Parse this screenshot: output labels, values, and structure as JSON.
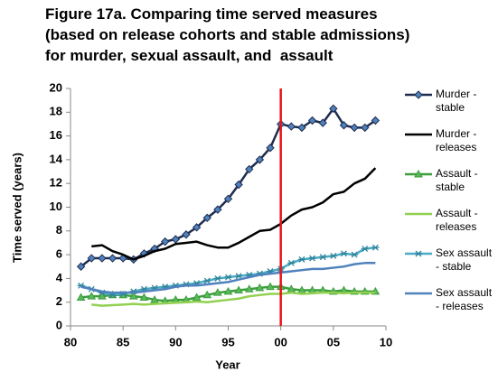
{
  "chart_data": {
    "type": "line",
    "title": "Figure 17a. Comparing time served measures\n(based on release cohorts and stable admissions)\nfor murder, sexual assault, and  assault",
    "xlabel": "Year",
    "ylabel": "Time served (years)",
    "x": [
      81,
      82,
      83,
      84,
      85,
      86,
      87,
      88,
      89,
      90,
      91,
      92,
      93,
      94,
      95,
      96,
      97,
      98,
      99,
      100,
      101,
      102,
      103,
      104,
      105,
      106,
      107,
      108,
      109
    ],
    "xlim": [
      80,
      110
    ],
    "xticks": [
      80,
      85,
      90,
      95,
      {
        "value": 100,
        "label": "00"
      },
      {
        "value": 105,
        "label": "05"
      },
      {
        "value": 110,
        "label": "10"
      }
    ],
    "ylim": [
      0,
      20
    ],
    "yticks": [
      0,
      2,
      4,
      6,
      8,
      10,
      12,
      14,
      16,
      18,
      20
    ],
    "grid": false,
    "legend": "right",
    "vline": {
      "x": 100,
      "color": "#e8141b"
    },
    "series": [
      {
        "name": "Murder - stable",
        "color": "#1f2d4f",
        "marker": "diamond",
        "marker_fill": "#4f81bd",
        "values": [
          5.0,
          5.7,
          5.7,
          5.7,
          5.7,
          5.6,
          6.1,
          6.5,
          7.1,
          7.3,
          7.7,
          8.3,
          9.1,
          9.8,
          10.7,
          11.9,
          13.2,
          14.0,
          15.0,
          17.0,
          16.8,
          16.7,
          17.3,
          17.1,
          18.3,
          16.9,
          16.7,
          16.7,
          17.3
        ]
      },
      {
        "name": "Murder - releases",
        "color": "#000000",
        "marker": "none",
        "values": [
          null,
          6.7,
          6.8,
          6.3,
          6.0,
          5.6,
          5.9,
          6.3,
          6.5,
          6.9,
          7.0,
          7.1,
          6.8,
          6.6,
          6.6,
          7.0,
          7.5,
          8.0,
          8.1,
          8.6,
          9.3,
          9.8,
          10.0,
          10.4,
          11.1,
          11.3,
          12.0,
          12.4,
          13.3
        ]
      },
      {
        "name": "Assault - stable",
        "color": "#3a9e3a",
        "marker": "triangle",
        "marker_fill": "#5cb85c",
        "values": [
          2.4,
          2.5,
          2.5,
          2.6,
          2.6,
          2.5,
          2.4,
          2.2,
          2.1,
          2.2,
          2.2,
          2.4,
          2.6,
          2.8,
          2.9,
          3.0,
          3.1,
          3.2,
          3.3,
          3.3,
          3.1,
          3.0,
          3.0,
          3.0,
          2.9,
          3.0,
          2.9,
          2.9,
          2.9
        ]
      },
      {
        "name": "Assault - releases",
        "color": "#92d050",
        "marker": "none",
        "values": [
          null,
          1.8,
          1.7,
          1.75,
          1.8,
          1.85,
          1.8,
          1.85,
          1.9,
          1.95,
          2.0,
          2.05,
          2.0,
          2.1,
          2.2,
          2.3,
          2.5,
          2.6,
          2.7,
          2.7,
          2.8,
          2.7,
          2.75,
          2.8,
          2.8,
          2.75,
          2.8,
          2.8,
          2.8
        ]
      },
      {
        "name": "Sex assault - stable",
        "color": "#4bacc6",
        "marker": "asterisk",
        "marker_fill": "#31859c",
        "values": [
          3.4,
          3.1,
          2.8,
          2.6,
          2.7,
          2.9,
          3.1,
          3.2,
          3.3,
          3.4,
          3.5,
          3.6,
          3.8,
          4.0,
          4.1,
          4.2,
          4.3,
          4.4,
          4.6,
          4.8,
          5.3,
          5.6,
          5.7,
          5.8,
          5.9,
          6.1,
          6.0,
          6.5,
          6.6
        ]
      },
      {
        "name": "Sex assault - releases",
        "color": "#4f81bd",
        "marker": "none",
        "values": [
          3.3,
          3.1,
          2.9,
          2.8,
          2.8,
          2.8,
          2.9,
          3.0,
          3.1,
          3.3,
          3.4,
          3.4,
          3.5,
          3.6,
          3.7,
          3.9,
          4.1,
          4.3,
          4.4,
          4.5,
          4.6,
          4.7,
          4.8,
          4.8,
          4.9,
          5.0,
          5.2,
          5.3,
          5.3
        ]
      }
    ]
  }
}
